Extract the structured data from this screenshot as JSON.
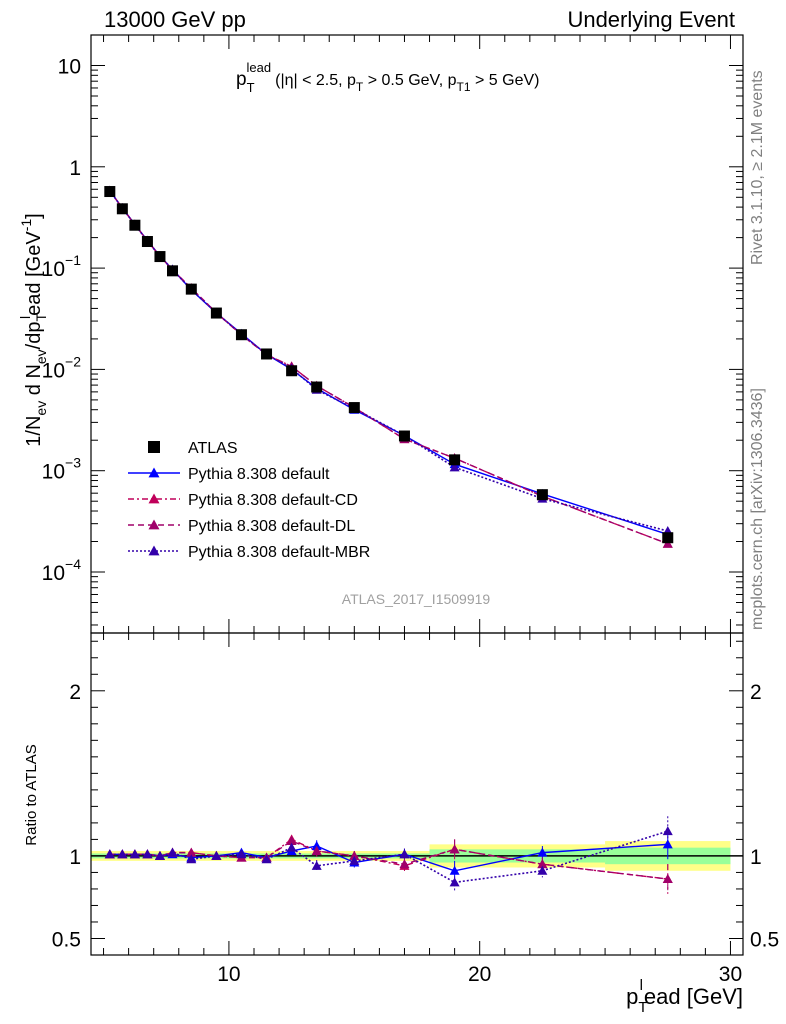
{
  "header": {
    "left": "13000 GeV pp",
    "right": "Underlying Event"
  },
  "side_text": {
    "rivet": "Rivet 3.1.10, ≥ 2.1M events",
    "site": "mcplots.cern.ch [arXiv:1306.3436]"
  },
  "watermark": "ATLAS_2017_I1509919",
  "chart_data": [
    {
      "type": "line",
      "panel": "main",
      "title": "p_T^lead (|η| < 2.5, p_T > 0.5 GeV, p_T1 > 5 GeV)",
      "title_parts": {
        "p": "p",
        "sub": "T",
        "sup": "lead",
        "cond1": "(|η| < 2.5, p",
        "cond_sub1": "T",
        "cond2": " > 0.5 GeV, p",
        "cond_sub2": "T1",
        "cond3": " > 5 GeV)"
      },
      "ylabel": "1/N_ev d N_ev/dp_T^lead [GeV^-1]",
      "ylabel_parts": {
        "a": "1/N",
        "a_sub": "ev",
        "b": " d N",
        "b_sub": "ev",
        "c": "/dp",
        "c_sub": "T",
        "c_sup": "l",
        "d": "ead [GeV",
        "d_sup": "-1",
        "e": "]"
      },
      "xlim": [
        4.5,
        30.5
      ],
      "ylim": [
        2.5e-05,
        20
      ],
      "yscale": "log",
      "y_ticks": [
        {
          "v": 10,
          "base": "10",
          "exp": ""
        },
        {
          "v": 1,
          "base": "1",
          "exp": ""
        },
        {
          "v": 0.1,
          "base": "10",
          "exp": "−1"
        },
        {
          "v": 0.01,
          "base": "10",
          "exp": "−2"
        },
        {
          "v": 0.001,
          "base": "10",
          "exp": "−3"
        },
        {
          "v": 0.0001,
          "base": "10",
          "exp": "−4"
        }
      ],
      "x": [
        5.25,
        5.75,
        6.25,
        6.75,
        7.25,
        7.75,
        8.5,
        9.5,
        10.5,
        11.5,
        12.5,
        13.5,
        15,
        17,
        19,
        22.5,
        27.5
      ],
      "series": [
        {
          "name": "ATLAS",
          "values": [
            0.57,
            0.385,
            0.265,
            0.183,
            0.13,
            0.094,
            0.062,
            0.036,
            0.022,
            0.0142,
            0.0097,
            0.0067,
            0.0042,
            0.0022,
            0.00128,
            0.00058,
            0.000218
          ]
        },
        {
          "name": "Pythia 8.308 default",
          "values": [
            0.58,
            0.392,
            0.27,
            0.187,
            0.132,
            0.097,
            0.061,
            0.036,
            0.0225,
            0.0141,
            0.01,
            0.0065,
            0.004,
            0.00222,
            0.00116,
            0.00059,
            0.000235
          ]
        },
        {
          "name": "Pythia 8.308 default-CD",
          "values": [
            0.58,
            0.391,
            0.269,
            0.186,
            0.131,
            0.096,
            0.0635,
            0.0362,
            0.0219,
            0.014,
            0.0107,
            0.0069,
            0.0042,
            0.00205,
            0.00133,
            0.00056,
            0.00019
          ]
        },
        {
          "name": "Pythia 8.308 default-DL",
          "values": [
            0.58,
            0.391,
            0.269,
            0.186,
            0.131,
            0.096,
            0.0635,
            0.0362,
            0.0219,
            0.014,
            0.0107,
            0.0069,
            0.0042,
            0.00205,
            0.00133,
            0.00056,
            0.00019
          ]
        },
        {
          "name": "Pythia 8.308 default-MBR",
          "values": [
            0.58,
            0.391,
            0.268,
            0.185,
            0.131,
            0.097,
            0.061,
            0.0362,
            0.0222,
            0.0141,
            0.0102,
            0.0063,
            0.0041,
            0.00222,
            0.00108,
            0.00053,
            0.000254
          ]
        }
      ]
    },
    {
      "type": "line",
      "panel": "ratio",
      "ylabel": "Ratio to ATLAS",
      "xlabel": "p_T^lead [GeV]",
      "xlabel_parts": {
        "p": "p",
        "sub": "T",
        "sup": "l",
        "rest": "ead [GeV]"
      },
      "xlim": [
        4.5,
        30.5
      ],
      "ylim": [
        0.4,
        2.35
      ],
      "x_ticks": [
        10,
        20,
        30
      ],
      "y_ticks": [
        0.5,
        1,
        2
      ],
      "x": [
        5.25,
        5.75,
        6.25,
        6.75,
        7.25,
        7.75,
        8.5,
        9.5,
        10.5,
        11.5,
        12.5,
        13.5,
        15,
        17,
        19,
        22.5,
        27.5
      ],
      "bands": [
        {
          "x0": 4.5,
          "x1": 18,
          "stat": 0.015,
          "total": 0.03
        },
        {
          "x0": 18,
          "x1": 25,
          "stat": 0.04,
          "total": 0.07
        },
        {
          "x0": 25,
          "x1": 30,
          "stat": 0.05,
          "total": 0.09
        }
      ],
      "series": [
        {
          "name": "Pythia 8.308 default",
          "values": [
            1.01,
            1.01,
            1.01,
            1.01,
            1.0,
            1.01,
            0.99,
            1.0,
            1.02,
            0.99,
            1.03,
            1.06,
            0.96,
            1.01,
            0.91,
            1.02,
            1.07
          ]
        },
        {
          "name": "Pythia 8.308 default-CD",
          "values": [
            1.01,
            1.01,
            1.01,
            1.01,
            1.0,
            1.02,
            1.02,
            1.0,
            0.99,
            0.99,
            1.1,
            1.03,
            1.0,
            0.94,
            1.04,
            0.95,
            0.86
          ]
        },
        {
          "name": "Pythia 8.308 default-DL",
          "values": [
            1.01,
            1.01,
            1.01,
            1.01,
            1.0,
            1.02,
            1.02,
            1.0,
            0.99,
            0.99,
            1.09,
            1.03,
            1.0,
            0.95,
            1.04,
            0.95,
            0.86
          ]
        },
        {
          "name": "Pythia 8.308 default-MBR",
          "values": [
            1.01,
            1.01,
            1.01,
            1.01,
            1.0,
            1.02,
            0.98,
            1.0,
            1.01,
            0.98,
            1.05,
            0.94,
            0.97,
            1.01,
            0.84,
            0.91,
            1.15
          ]
        }
      ],
      "errors": [
        0.01,
        0.01,
        0.01,
        0.01,
        0.01,
        0.01,
        0.015,
        0.015,
        0.015,
        0.02,
        0.025,
        0.035,
        0.03,
        0.035,
        0.06,
        0.04,
        0.09
      ]
    }
  ],
  "legend": [
    {
      "label": "ATLAS"
    },
    {
      "label": "Pythia 8.308 default"
    },
    {
      "label": "Pythia 8.308 default-CD"
    },
    {
      "label": "Pythia 8.308 default-DL"
    },
    {
      "label": "Pythia 8.308 default-MBR"
    }
  ],
  "colors": {
    "data": "#000000",
    "default": "#0000ff",
    "cd": "#c0005a",
    "dl": "#a0006a",
    "mbr": "#3300aa",
    "band_stat": "#99ff99",
    "band_total": "#ffff88"
  }
}
